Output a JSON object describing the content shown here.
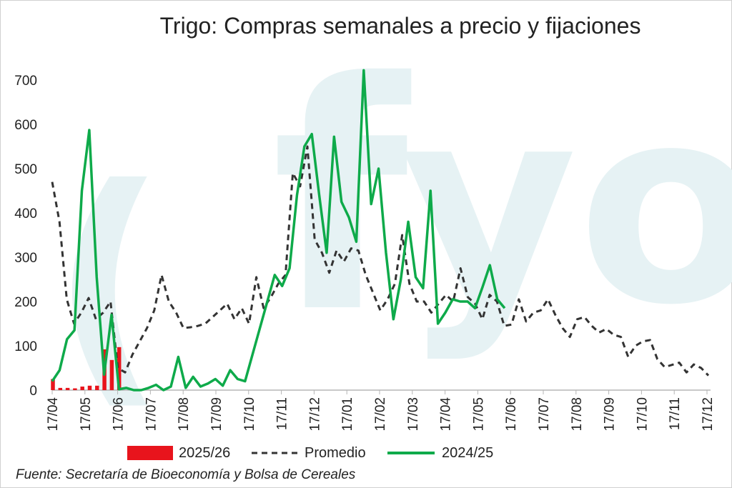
{
  "title": "Trigo: Compras semanales a precio y fijaciones",
  "source": "Fuente: Secretaría de Bioeconomía y Bolsa de Cereales",
  "colors": {
    "bar": "#e8141c",
    "promedio": "#333333",
    "line_2425": "#0eaa4a",
    "watermark": "#e6f2f4"
  },
  "legend": {
    "bar": "2025/26",
    "promedio": "Promedio",
    "line": "2024/25"
  },
  "chart_data": {
    "type": "bar+line",
    "title": "Trigo: Compras semanales a precio y fijaciones",
    "ylim": [
      0,
      700
    ],
    "yticks": [
      0,
      100,
      200,
      300,
      400,
      500,
      600,
      700
    ],
    "x_tick_labels": [
      "17/04",
      "17/05",
      "17/06",
      "17/07",
      "17/08",
      "17/09",
      "17/10",
      "17/11",
      "17/12",
      "17/01",
      "17/02",
      "17/03",
      "17/04",
      "17/05",
      "17/06",
      "17/07",
      "17/08",
      "17/09",
      "17/10",
      "17/11",
      "17/12"
    ],
    "weeks_total": 52,
    "legend_position": "bottom",
    "grid": false,
    "series": [
      {
        "name": "2025/26",
        "kind": "bar",
        "values": [
          25,
          5,
          5,
          4,
          8,
          10,
          10,
          92,
          68,
          97
        ]
      },
      {
        "name": "Promedio",
        "kind": "dashed-line",
        "values": [
          470,
          380,
          205,
          150,
          175,
          208,
          160,
          175,
          200,
          50,
          40,
          80,
          110,
          140,
          180,
          260,
          200,
          175,
          140,
          142,
          145,
          150,
          165,
          180,
          195,
          160,
          185,
          150,
          255,
          185,
          210,
          240,
          260,
          490,
          460,
          550,
          340,
          310,
          265,
          315,
          290,
          320,
          315,
          260,
          220,
          180,
          205,
          240,
          350,
          240,
          200,
          200,
          175,
          195,
          215,
          200,
          275,
          210,
          195,
          160,
          215,
          200,
          145,
          148,
          205,
          155,
          175,
          180,
          205,
          170,
          140,
          120,
          160,
          165,
          145,
          130,
          138,
          125,
          120,
          75,
          100,
          110,
          113,
          70,
          52,
          57,
          62,
          40,
          58,
          50,
          33
        ]
      },
      {
        "name": "2024/25",
        "kind": "line",
        "values": [
          20,
          45,
          115,
          135,
          450,
          587,
          255,
          35,
          170,
          2,
          5,
          0,
          0,
          5,
          12,
          0,
          8,
          75,
          5,
          30,
          8,
          15,
          25,
          10,
          45,
          25,
          20,
          80,
          140,
          200,
          260,
          235,
          275,
          440,
          550,
          578,
          440,
          310,
          572,
          425,
          390,
          335,
          722,
          420,
          500,
          310,
          160,
          250,
          380,
          255,
          230,
          450,
          150,
          175,
          205,
          200,
          200,
          185,
          232,
          282,
          205,
          185
        ]
      }
    ]
  }
}
